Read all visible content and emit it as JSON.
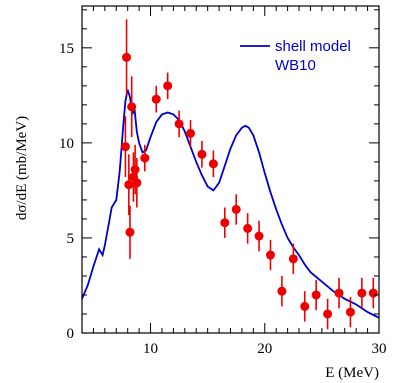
{
  "chart_data": {
    "type": "scatter",
    "xlabel": "E (MeV)",
    "ylabel": "dσ/dE (mb/MeV)",
    "xlim": [
      4,
      30
    ],
    "ylim": [
      0,
      17.2
    ],
    "xticks": [
      10,
      20,
      30
    ],
    "yticks": [
      0,
      5,
      10,
      15
    ],
    "colors": {
      "curve": "#0000cc",
      "points": "#ee0000"
    },
    "legend": {
      "placement": "top-right",
      "line1": "shell model",
      "line2": "WB10"
    },
    "series": [
      {
        "name": "shell model WB10",
        "kind": "line",
        "x": [
          4.0,
          4.5,
          5.0,
          5.5,
          5.8,
          6.0,
          6.3,
          6.6,
          7.0,
          7.3,
          7.6,
          7.8,
          8.0,
          8.2,
          8.4,
          8.6,
          8.8,
          9.0,
          9.3,
          9.6,
          10.0,
          10.5,
          11.0,
          11.5,
          12.0,
          12.5,
          13.0,
          13.5,
          14.0,
          14.5,
          15.0,
          15.5,
          16.0,
          16.5,
          17.0,
          17.5,
          18.0,
          18.3,
          18.6,
          19.0,
          19.5,
          20.0,
          20.5,
          21.0,
          21.5,
          22.0,
          22.5,
          23.0,
          23.5,
          24.0,
          25.0,
          26.0,
          27.0,
          28.0,
          29.0,
          30.0
        ],
        "y": [
          1.8,
          2.5,
          3.5,
          4.4,
          4.1,
          4.6,
          5.6,
          6.6,
          7.0,
          8.5,
          10.8,
          12.2,
          12.8,
          12.4,
          11.5,
          11.8,
          10.6,
          10.0,
          9.5,
          9.6,
          10.3,
          11.1,
          11.5,
          11.6,
          11.5,
          11.2,
          10.6,
          9.8,
          9.0,
          8.3,
          7.7,
          7.5,
          7.9,
          8.8,
          9.7,
          10.4,
          10.8,
          10.9,
          10.8,
          10.4,
          9.5,
          8.4,
          7.4,
          6.5,
          5.7,
          5.0,
          4.5,
          4.1,
          3.6,
          3.2,
          2.7,
          2.2,
          1.8,
          1.5,
          1.1,
          0.8
        ]
      },
      {
        "name": "data",
        "kind": "points",
        "x": [
          7.8,
          7.9,
          8.1,
          8.2,
          8.35,
          8.5,
          8.65,
          8.8,
          9.5,
          10.5,
          11.5,
          12.5,
          13.5,
          14.5,
          15.5,
          16.5,
          17.5,
          18.5,
          19.5,
          20.5,
          21.5,
          22.5,
          23.5,
          24.5,
          25.5,
          26.5,
          27.5,
          28.5,
          29.5
        ],
        "y": [
          9.8,
          14.5,
          7.8,
          5.3,
          11.9,
          8.2,
          8.6,
          7.9,
          9.2,
          12.3,
          13.0,
          11.0,
          10.5,
          9.4,
          8.9,
          5.8,
          6.5,
          5.5,
          5.1,
          4.1,
          2.2,
          3.9,
          1.4,
          2.0,
          1.0,
          2.1,
          1.1,
          2.1,
          2.1
        ],
        "err": [
          1.6,
          2.0,
          1.6,
          1.4,
          1.6,
          1.3,
          1.3,
          1.3,
          0.7,
          0.7,
          0.7,
          0.7,
          0.7,
          0.7,
          0.7,
          0.8,
          0.8,
          0.8,
          0.8,
          0.8,
          0.8,
          0.8,
          0.8,
          0.8,
          0.8,
          0.8,
          0.8,
          0.8,
          0.8
        ]
      }
    ]
  }
}
